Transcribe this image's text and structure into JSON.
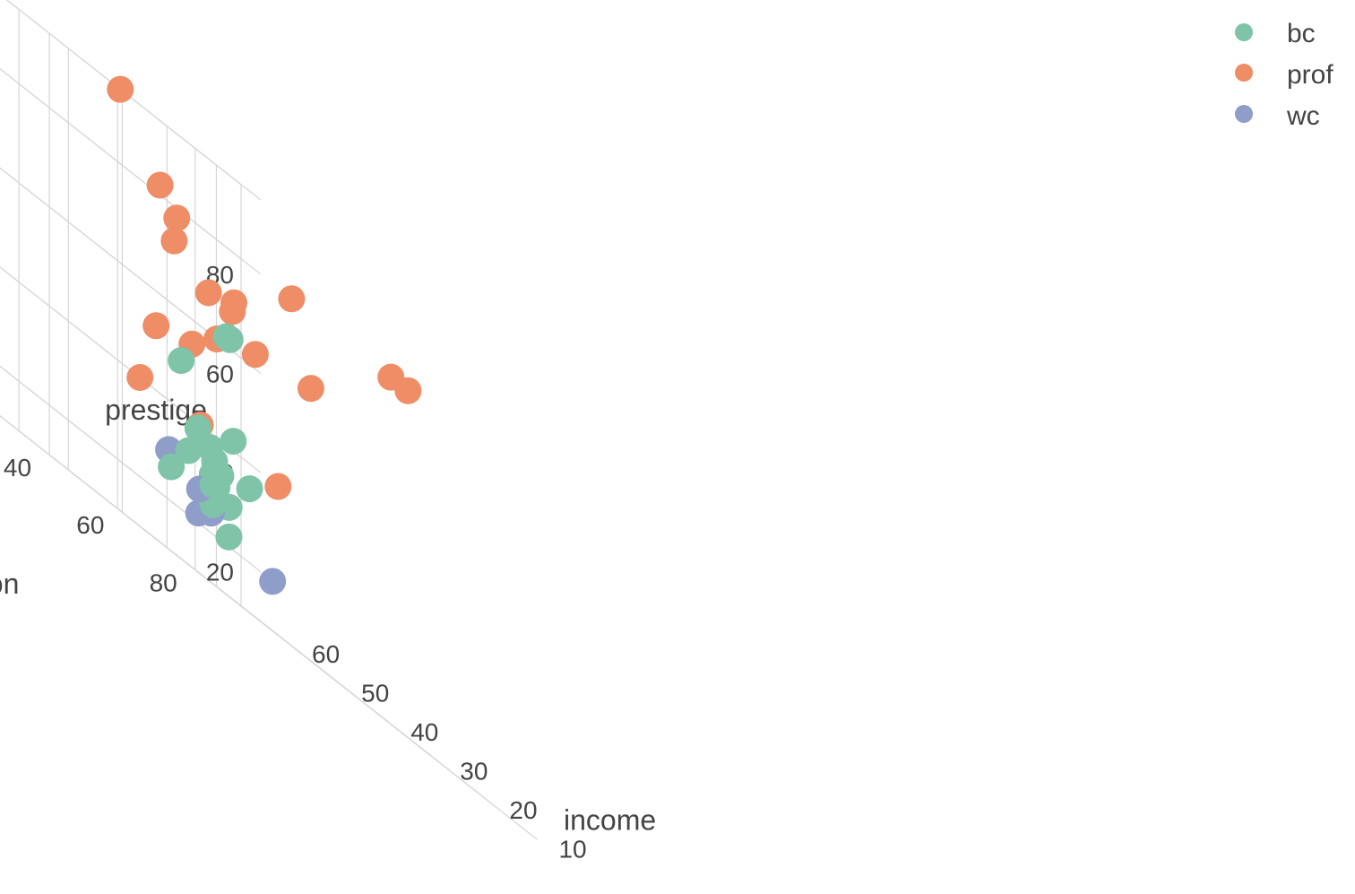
{
  "chart_data": {
    "type": "scatter3d",
    "axes": {
      "x": {
        "label": "income",
        "ticks": [
          10,
          20,
          30,
          40,
          50,
          60
        ],
        "range": [
          5,
          66
        ]
      },
      "y": {
        "label": "education",
        "ticks": [
          20,
          40,
          60,
          80
        ],
        "range": [
          10,
          98
        ]
      },
      "z": {
        "label": "prestige",
        "ticks": [
          20,
          40,
          60,
          80
        ],
        "range": [
          10,
          95
        ]
      }
    },
    "grid": true,
    "legend_position": "top-right",
    "series": [
      {
        "name": "bc",
        "color": "#7fc3a8",
        "points": [
          [
            8,
            10,
            62
          ],
          [
            22,
            30,
            62
          ],
          [
            26,
            22,
            50
          ],
          [
            28,
            39,
            42
          ],
          [
            30,
            32,
            39
          ],
          [
            24,
            28,
            30
          ],
          [
            28,
            22,
            27
          ],
          [
            21,
            34,
            35
          ],
          [
            32,
            41,
            33
          ],
          [
            33,
            40,
            32
          ],
          [
            35,
            44,
            30
          ],
          [
            34,
            46,
            28
          ],
          [
            37,
            45,
            27
          ],
          [
            38,
            47,
            26
          ],
          [
            40,
            43,
            33
          ],
          [
            37,
            50,
            22
          ],
          [
            34,
            42,
            35
          ],
          [
            32,
            38,
            37
          ]
        ]
      },
      {
        "name": "prof",
        "color": "#ee8d66",
        "points": [
          [
            59,
            50,
            95
          ],
          [
            14,
            68,
            80
          ],
          [
            16,
            66,
            80
          ],
          [
            28,
            55,
            80
          ],
          [
            48,
            46,
            82
          ],
          [
            52,
            56,
            78
          ],
          [
            54,
            58,
            73
          ],
          [
            36,
            50,
            70
          ],
          [
            40,
            55,
            68
          ],
          [
            50,
            62,
            68
          ],
          [
            30,
            63,
            65
          ],
          [
            52,
            67,
            60
          ],
          [
            60,
            71,
            55
          ],
          [
            68,
            72,
            53
          ],
          [
            62,
            76,
            40
          ],
          [
            72,
            73,
            40
          ],
          [
            42,
            64,
            63
          ],
          [
            30,
            54,
            40
          ]
        ]
      },
      {
        "name": "wc",
        "color": "#8f9dc9",
        "points": [
          [
            6,
            20,
            20
          ],
          [
            64,
            70,
            30
          ],
          [
            40,
            46,
            27
          ],
          [
            48,
            60,
            25
          ],
          [
            45,
            56,
            24
          ],
          [
            52,
            62,
            22
          ]
        ]
      }
    ]
  }
}
